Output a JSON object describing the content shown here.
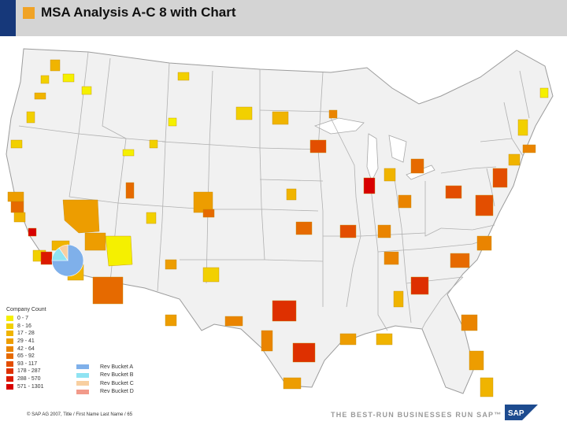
{
  "header": {
    "title": "MSA Analysis A-C 8 with Chart"
  },
  "colors": {
    "header_bg": "#d4d4d4",
    "header_accent_blue": "#16387a",
    "header_square": "#f0a326",
    "state_fill": "#f1f1f1",
    "state_border": "#a8a8a8",
    "pie_blue": "#7fb0ea",
    "pie_cyan": "#8fe3f2",
    "pie_peach": "#f8cfa0"
  },
  "legend": {
    "title": "Company Count",
    "buckets": [
      {
        "label": "0 - 7",
        "color": "#f5f000"
      },
      {
        "label": "8 - 16",
        "color": "#f2d000"
      },
      {
        "label": "17 - 28",
        "color": "#f0b400"
      },
      {
        "label": "29 - 41",
        "color": "#ed9d00"
      },
      {
        "label": "42 - 64",
        "color": "#ea8400"
      },
      {
        "label": "65 - 92",
        "color": "#e66a00"
      },
      {
        "label": "93 - 117",
        "color": "#e34e00"
      },
      {
        "label": "178 - 287",
        "color": "#de3000"
      },
      {
        "label": "288 - 570",
        "color": "#dc1a00"
      },
      {
        "label": "571 - 1301",
        "color": "#d80000"
      }
    ]
  },
  "pie_legend": {
    "items": [
      {
        "label": "Rev Bucket A",
        "color": "#7fb0ea"
      },
      {
        "label": "Rev Bucket B",
        "color": "#8fe3f2"
      },
      {
        "label": "Rev Bucket C",
        "color": "#f8cfa0"
      },
      {
        "label": "Rev Bucket D",
        "color": "#f29a8a"
      }
    ]
  },
  "footer": {
    "copyright": "© SAP AG 2007, Title / First Name Last Name / 65",
    "slogan": "THE BEST-RUN BUSINESSES RUN SAP™"
  }
}
